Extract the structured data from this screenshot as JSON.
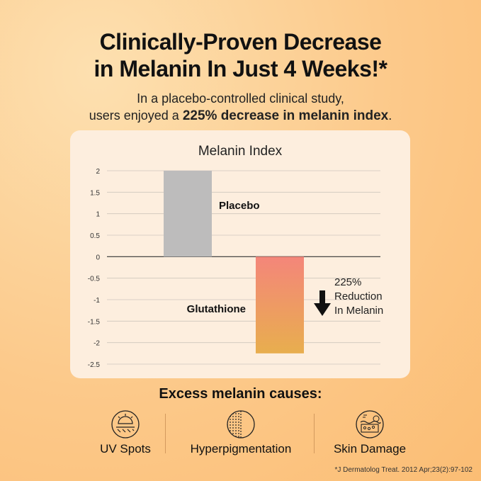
{
  "headline": {
    "line1": "Clinically-Proven Decrease",
    "line2": "in Melanin In Just 4 Weeks!*"
  },
  "subtitle": {
    "line1": "In a placebo-controlled clinical study,",
    "line2_prefix": "users enjoyed a ",
    "line2_bold": "225% decrease in melanin index",
    "line2_suffix": "."
  },
  "chart_data": {
    "type": "bar",
    "title": "Melanin Index",
    "categories": [
      "Placebo",
      "Glutathione"
    ],
    "values": [
      2.0,
      -2.25
    ],
    "ylim": [
      -2.5,
      2
    ],
    "yticks": [
      "2",
      "1.5",
      "1",
      "0.5",
      "0",
      "-0.5",
      "-1",
      "-1.5",
      "-2",
      "-2.5"
    ],
    "grid": true,
    "colors": {
      "placebo": "#bdbcbc",
      "glutathione_top": "#f4867a",
      "glutathione_bottom": "#e8ae4e"
    },
    "annotation": {
      "line1": "225%",
      "line2": "Reduction",
      "line3": "In Melanin"
    }
  },
  "causes": {
    "title": "Excess melanin causes:",
    "items": [
      {
        "icon": "uv-sun-icon",
        "label": "UV Spots"
      },
      {
        "icon": "pigment-circle-icon",
        "label": "Hyperpigmentation"
      },
      {
        "icon": "skin-layer-icon",
        "label": "Skin Damage"
      }
    ]
  },
  "footnote": "*J Dermatolog Treat. 2012 Apr;23(2):97-102"
}
